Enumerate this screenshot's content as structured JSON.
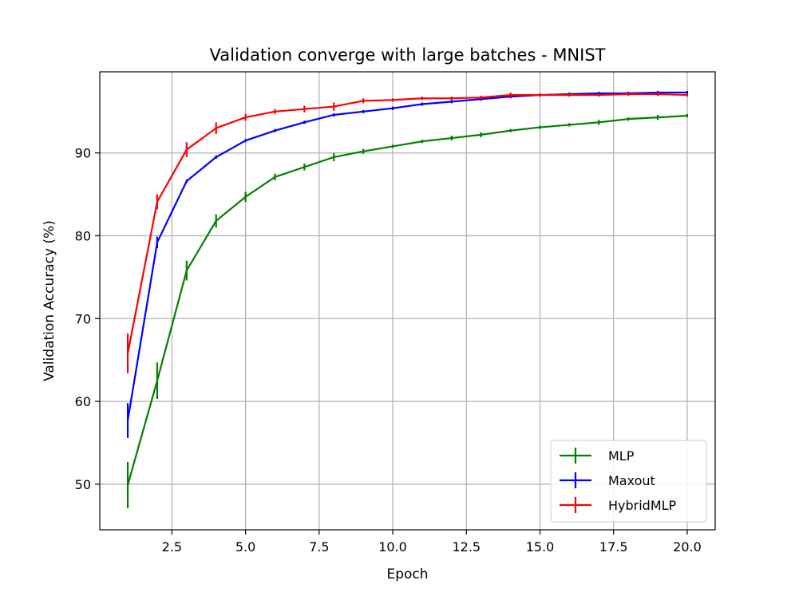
{
  "chart_data": {
    "type": "line",
    "title": "Validation converge with large batches - MNIST",
    "xlabel": "Epoch",
    "ylabel": "Validation Accuracy (%)",
    "xlim": [
      0.05,
      20.95
    ],
    "ylim": [
      44.5,
      99.8
    ],
    "xticks": [
      2.5,
      5.0,
      7.5,
      10.0,
      12.5,
      15.0,
      17.5,
      20.0
    ],
    "xtick_labels": [
      "2.5",
      "5.0",
      "7.5",
      "10.0",
      "12.5",
      "15.0",
      "17.5",
      "20.0"
    ],
    "yticks": [
      50,
      60,
      70,
      80,
      90
    ],
    "ytick_labels": [
      "50",
      "60",
      "70",
      "80",
      "90"
    ],
    "grid": true,
    "legend_position": "lower-right",
    "series": [
      {
        "name": "MLP",
        "color": "#008000",
        "x": [
          1,
          2,
          3,
          4,
          5,
          6,
          7,
          8,
          9,
          10,
          11,
          12,
          13,
          14,
          15,
          16,
          17,
          18,
          19,
          20
        ],
        "y": [
          49.9,
          62.5,
          75.8,
          81.8,
          84.7,
          87.1,
          88.3,
          89.5,
          90.2,
          90.8,
          91.4,
          91.8,
          92.2,
          92.7,
          93.1,
          93.4,
          93.7,
          94.1,
          94.3,
          94.5
        ],
        "err": [
          2.8,
          2.2,
          1.2,
          0.8,
          0.6,
          0.4,
          0.4,
          0.5,
          0.3,
          0.2,
          0.2,
          0.3,
          0.3,
          0.2,
          0.2,
          0.2,
          0.3,
          0.2,
          0.3,
          0.2
        ]
      },
      {
        "name": "Maxout",
        "color": "#0000ff",
        "x": [
          1,
          2,
          3,
          4,
          5,
          6,
          7,
          8,
          9,
          10,
          11,
          12,
          13,
          14,
          15,
          16,
          17,
          18,
          19,
          20
        ],
        "y": [
          57.7,
          79.2,
          86.6,
          89.5,
          91.5,
          92.7,
          93.7,
          94.6,
          95.0,
          95.4,
          95.9,
          96.2,
          96.5,
          96.8,
          97.0,
          97.1,
          97.2,
          97.2,
          97.3,
          97.3
        ],
        "err": [
          2.1,
          0.7,
          0.2,
          0.2,
          0.2,
          0.2,
          0.2,
          0.2,
          0.2,
          0.2,
          0.2,
          0.2,
          0.2,
          0.2,
          0.2,
          0.2,
          0.2,
          0.2,
          0.2,
          0.2
        ]
      },
      {
        "name": "HybridMLP",
        "color": "#ff0000",
        "x": [
          1,
          2,
          3,
          4,
          5,
          6,
          7,
          8,
          9,
          10,
          11,
          12,
          13,
          14,
          15,
          16,
          17,
          18,
          19,
          20
        ],
        "y": [
          65.8,
          84.1,
          90.4,
          93.0,
          94.3,
          95.0,
          95.3,
          95.6,
          96.3,
          96.4,
          96.6,
          96.6,
          96.7,
          97.0,
          97.0,
          97.0,
          97.0,
          97.1,
          97.1,
          97.0
        ],
        "err": [
          2.4,
          0.9,
          0.9,
          0.7,
          0.4,
          0.3,
          0.4,
          0.5,
          0.3,
          0.2,
          0.2,
          0.2,
          0.2,
          0.3,
          0.2,
          0.2,
          0.2,
          0.2,
          0.2,
          0.2
        ]
      }
    ]
  }
}
